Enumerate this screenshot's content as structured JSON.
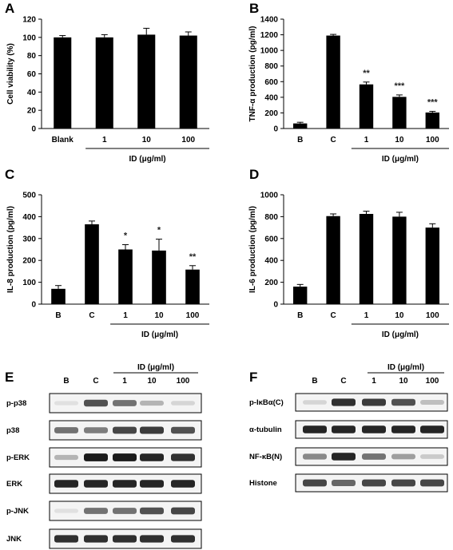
{
  "chart_data": [
    {
      "panel": "A",
      "type": "bar",
      "categories": [
        "Blank",
        "1",
        "10",
        "100"
      ],
      "values": [
        100,
        100,
        103,
        102
      ],
      "errors": [
        2,
        3,
        7,
        4
      ],
      "significance": [
        "",
        "",
        "",
        ""
      ],
      "ylabel": "Cell viability (%)",
      "group_label": "ID (μg/ml)",
      "ylim": [
        0,
        120
      ],
      "yticks": [
        "0",
        "20",
        "40",
        "60",
        "80",
        "100",
        "120"
      ]
    },
    {
      "panel": "B",
      "type": "bar",
      "categories": [
        "B",
        "C",
        "1",
        "10",
        "100"
      ],
      "values": [
        65,
        1190,
        565,
        405,
        205
      ],
      "errors": [
        15,
        15,
        30,
        25,
        15
      ],
      "significance": [
        "",
        "",
        "**",
        "***",
        "***"
      ],
      "ylabel": "TNF-α production (pg/ml)",
      "group_label": "ID (μg/ml)",
      "ylim": [
        0,
        1400
      ],
      "yticks": [
        "0",
        "200",
        "400",
        "600",
        "800",
        "1000",
        "1200",
        "1400"
      ]
    },
    {
      "panel": "C",
      "type": "bar",
      "categories": [
        "B",
        "C",
        "1",
        "10",
        "100"
      ],
      "values": [
        70,
        365,
        250,
        245,
        158
      ],
      "errors": [
        15,
        15,
        22,
        52,
        18
      ],
      "significance": [
        "",
        "",
        "*",
        "*",
        "**"
      ],
      "ylabel": "IL-8 production (pg/ml)",
      "group_label": "ID (μg/ml)",
      "ylim": [
        0,
        500
      ],
      "yticks": [
        "0",
        "100",
        "200",
        "300",
        "400",
        "500"
      ]
    },
    {
      "panel": "D",
      "type": "bar",
      "categories": [
        "B",
        "C",
        "1",
        "10",
        "100"
      ],
      "values": [
        160,
        805,
        825,
        800,
        700
      ],
      "errors": [
        20,
        20,
        25,
        40,
        35
      ],
      "significance": [
        "",
        "",
        "",
        "",
        ""
      ],
      "ylabel": "IL-6 production (pg/ml)",
      "group_label": "ID (μg/ml)",
      "ylim": [
        0,
        1000
      ],
      "yticks": [
        "0",
        "200",
        "400",
        "600",
        "800",
        "1000"
      ]
    }
  ],
  "blots": {
    "E": {
      "panel_label": "E",
      "group_label": "ID (μg/ml)",
      "lanes": [
        "B",
        "C",
        "1",
        "10",
        "100"
      ],
      "rows": [
        {
          "label": "p-p38",
          "intensities": [
            0.05,
            0.7,
            0.55,
            0.25,
            0.1
          ]
        },
        {
          "label": "p38",
          "intensities": [
            0.55,
            0.5,
            0.75,
            0.8,
            0.7
          ]
        },
        {
          "label": "p-ERK",
          "intensities": [
            0.25,
            0.95,
            0.95,
            0.9,
            0.85
          ]
        },
        {
          "label": "ERK",
          "intensities": [
            0.9,
            0.9,
            0.9,
            0.9,
            0.9
          ]
        },
        {
          "label": "p-JNK",
          "intensities": [
            0.05,
            0.55,
            0.55,
            0.7,
            0.75
          ]
        },
        {
          "label": "JNK",
          "intensities": [
            0.85,
            0.85,
            0.85,
            0.85,
            0.85
          ]
        }
      ]
    },
    "F": {
      "panel_label": "F",
      "group_label": "ID (μg/ml)",
      "lanes": [
        "B",
        "C",
        "1",
        "10",
        "100"
      ],
      "rows": [
        {
          "label": "p-IκBα(C)",
          "intensities": [
            0.1,
            0.85,
            0.8,
            0.7,
            0.2
          ]
        },
        {
          "label": "α-tubulin",
          "intensities": [
            0.9,
            0.9,
            0.9,
            0.9,
            0.9
          ]
        },
        {
          "label": "NF-κB(N)",
          "intensities": [
            0.45,
            0.9,
            0.55,
            0.35,
            0.15
          ]
        },
        {
          "label": "Histone",
          "intensities": [
            0.75,
            0.6,
            0.75,
            0.75,
            0.75
          ]
        }
      ]
    }
  }
}
